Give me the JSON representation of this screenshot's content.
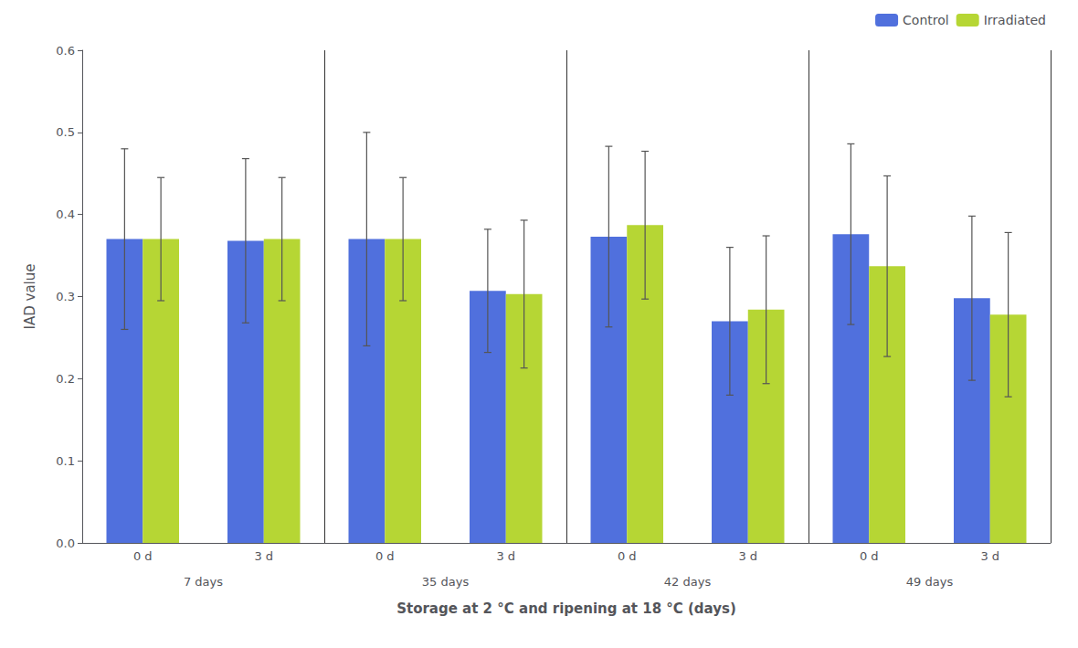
{
  "chart_data": {
    "type": "bar",
    "categories": [
      "0 d",
      "3 d",
      "0 d",
      "3 d",
      "0 d",
      "3 d",
      "0 d",
      "3 d"
    ],
    "groups": [
      "7 days",
      "35 days",
      "42 days",
      "49 days"
    ],
    "series": [
      {
        "name": "Control",
        "values": [
          0.37,
          0.368,
          0.37,
          0.307,
          0.373,
          0.27,
          0.376,
          0.298
        ],
        "errors": [
          0.11,
          0.1,
          0.13,
          0.075,
          0.11,
          0.09,
          0.11,
          0.1
        ]
      },
      {
        "name": "Irradiated",
        "values": [
          0.37,
          0.37,
          0.37,
          0.303,
          0.387,
          0.284,
          0.337,
          0.278
        ],
        "errors": [
          0.075,
          0.075,
          0.075,
          0.09,
          0.09,
          0.09,
          0.11,
          0.1
        ]
      }
    ],
    "xlabel": "Storage at 2 °C and ripening at 18 °C (days)",
    "ylabel": "IAD value",
    "ylim": [
      0.0,
      0.6
    ],
    "yticks": [
      {
        "value": 0.0,
        "label": "0.0"
      },
      0.1,
      0.2,
      0.3,
      0.4,
      0.5,
      0.6
    ],
    "grid": false,
    "legend": "upper right"
  }
}
